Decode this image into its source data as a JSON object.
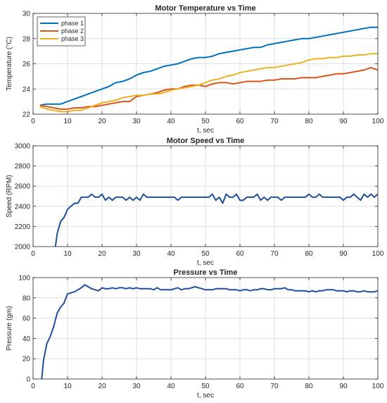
{
  "chart_data": [
    {
      "type": "line",
      "title": "Motor Temperature vs Time",
      "xlabel": "t, sec",
      "ylabel": "Temperature (°C)",
      "xlim": [
        0,
        100
      ],
      "ylim": [
        22,
        30
      ],
      "xticks": [
        "0",
        "10",
        "20",
        "30",
        "40",
        "50",
        "60",
        "70",
        "80",
        "90",
        "100"
      ],
      "yticks": [
        "22",
        "24",
        "26",
        "28",
        "30"
      ],
      "grid": true,
      "legend": "top-left",
      "series": [
        {
          "name": "phase 1",
          "color": "#0072BD",
          "x": [
            2,
            4,
            6,
            8,
            10,
            12,
            14,
            16,
            18,
            20,
            22,
            24,
            26,
            28,
            30,
            32,
            34,
            36,
            38,
            40,
            42,
            44,
            46,
            48,
            50,
            52,
            54,
            56,
            58,
            60,
            62,
            64,
            66,
            68,
            70,
            72,
            74,
            76,
            78,
            80,
            82,
            84,
            86,
            88,
            90,
            92,
            94,
            96,
            98,
            100
          ],
          "y": [
            22.7,
            22.8,
            22.8,
            22.8,
            23.0,
            23.2,
            23.4,
            23.6,
            23.8,
            24.0,
            24.2,
            24.5,
            24.6,
            24.8,
            25.1,
            25.3,
            25.4,
            25.6,
            25.8,
            25.9,
            26.0,
            26.2,
            26.4,
            26.5,
            26.5,
            26.6,
            26.8,
            26.9,
            27.0,
            27.1,
            27.2,
            27.3,
            27.3,
            27.5,
            27.6,
            27.7,
            27.8,
            27.9,
            28.0,
            28.0,
            28.1,
            28.2,
            28.3,
            28.4,
            28.5,
            28.6,
            28.7,
            28.8,
            28.9,
            28.9
          ]
        },
        {
          "name": "phase 2",
          "color": "#D95319",
          "x": [
            2,
            4,
            6,
            8,
            10,
            12,
            14,
            16,
            18,
            20,
            22,
            24,
            26,
            28,
            30,
            32,
            34,
            36,
            38,
            40,
            42,
            44,
            46,
            48,
            50,
            52,
            54,
            56,
            58,
            60,
            62,
            64,
            66,
            68,
            70,
            72,
            74,
            76,
            78,
            80,
            82,
            84,
            86,
            88,
            90,
            92,
            94,
            96,
            98,
            100
          ],
          "y": [
            22.7,
            22.6,
            22.5,
            22.4,
            22.4,
            22.5,
            22.5,
            22.6,
            22.6,
            22.7,
            22.8,
            22.9,
            23.0,
            23.0,
            23.4,
            23.5,
            23.6,
            23.7,
            23.9,
            24.0,
            24.0,
            24.2,
            24.3,
            24.3,
            24.2,
            24.4,
            24.5,
            24.5,
            24.4,
            24.5,
            24.6,
            24.6,
            24.6,
            24.7,
            24.7,
            24.8,
            24.8,
            24.8,
            24.9,
            24.9,
            24.9,
            25.0,
            25.1,
            25.2,
            25.2,
            25.3,
            25.4,
            25.5,
            25.7,
            25.5
          ]
        },
        {
          "name": "phase 3",
          "color": "#EDB120",
          "x": [
            2,
            4,
            6,
            8,
            10,
            12,
            14,
            16,
            18,
            20,
            22,
            24,
            26,
            28,
            30,
            32,
            34,
            36,
            38,
            40,
            42,
            44,
            46,
            48,
            50,
            52,
            54,
            56,
            58,
            60,
            62,
            64,
            66,
            68,
            70,
            72,
            74,
            76,
            78,
            80,
            82,
            84,
            86,
            88,
            90,
            92,
            94,
            96,
            98,
            100
          ],
          "y": [
            22.6,
            22.4,
            22.3,
            22.2,
            22.2,
            22.3,
            22.3,
            22.5,
            22.7,
            22.9,
            23.0,
            23.1,
            23.3,
            23.4,
            23.5,
            23.5,
            23.6,
            23.6,
            23.7,
            23.9,
            24.0,
            24.1,
            24.2,
            24.3,
            24.5,
            24.7,
            24.8,
            25.0,
            25.1,
            25.3,
            25.4,
            25.5,
            25.6,
            25.7,
            25.7,
            25.8,
            25.9,
            26.0,
            26.1,
            26.3,
            26.4,
            26.4,
            26.5,
            26.5,
            26.6,
            26.6,
            26.7,
            26.7,
            26.8,
            26.8
          ]
        }
      ]
    },
    {
      "type": "line",
      "title": "Motor Speed vs Time",
      "xlabel": "t, sec",
      "ylabel": "Speed (RPM)",
      "xlim": [
        0,
        100
      ],
      "ylim": [
        2000,
        3000
      ],
      "xticks": [
        "0",
        "10",
        "20",
        "30",
        "40",
        "50",
        "60",
        "70",
        "80",
        "90",
        "100"
      ],
      "yticks": [
        "2000",
        "2200",
        "2400",
        "2600",
        "2800",
        "3000"
      ],
      "grid": true,
      "series": [
        {
          "color": "#1F4E9C",
          "x": [
            6.5,
            7,
            8,
            9,
            10,
            11,
            12,
            13,
            14,
            15,
            16,
            17,
            18,
            19,
            20,
            21,
            22,
            23,
            24,
            25,
            26,
            27,
            28,
            29,
            30,
            31,
            32,
            33,
            34,
            35,
            36,
            37,
            38,
            39,
            40,
            41,
            42,
            43,
            44,
            45,
            46,
            47,
            48,
            49,
            50,
            51,
            52,
            53,
            54,
            55,
            56,
            57,
            58,
            59,
            60,
            61,
            62,
            63,
            64,
            65,
            66,
            67,
            68,
            69,
            70,
            71,
            72,
            73,
            74,
            75,
            76,
            77,
            78,
            79,
            80,
            81,
            82,
            83,
            84,
            85,
            86,
            87,
            88,
            89,
            90,
            91,
            92,
            93,
            94,
            95,
            96,
            97,
            98,
            99,
            100
          ],
          "y": [
            2000,
            2130,
            2250,
            2290,
            2370,
            2400,
            2430,
            2430,
            2490,
            2490,
            2490,
            2520,
            2490,
            2490,
            2520,
            2460,
            2490,
            2460,
            2490,
            2490,
            2490,
            2460,
            2490,
            2460,
            2490,
            2460,
            2520,
            2490,
            2490,
            2490,
            2490,
            2490,
            2490,
            2490,
            2490,
            2490,
            2460,
            2490,
            2490,
            2490,
            2490,
            2490,
            2490,
            2490,
            2490,
            2490,
            2520,
            2460,
            2490,
            2430,
            2520,
            2490,
            2490,
            2520,
            2460,
            2460,
            2490,
            2490,
            2490,
            2520,
            2460,
            2490,
            2460,
            2490,
            2490,
            2490,
            2460,
            2490,
            2490,
            2490,
            2490,
            2490,
            2490,
            2490,
            2520,
            2490,
            2490,
            2520,
            2490,
            2490,
            2490,
            2490,
            2490,
            2490,
            2460,
            2490,
            2490,
            2520,
            2490,
            2460,
            2520,
            2490,
            2520,
            2490,
            2520
          ]
        }
      ]
    },
    {
      "type": "line",
      "title": "Pressure vs Time",
      "xlabel": "t, sec",
      "ylabel": "Pressure (gm)",
      "xlim": [
        0,
        100
      ],
      "ylim": [
        0,
        100
      ],
      "xticks": [
        "0",
        "10",
        "20",
        "30",
        "40",
        "50",
        "60",
        "70",
        "80",
        "90",
        "100"
      ],
      "yticks": [
        "0",
        "20",
        "40",
        "60",
        "80",
        "100"
      ],
      "grid": true,
      "series": [
        {
          "color": "#1F4E9C",
          "x": [
            2.5,
            3,
            4,
            5,
            6,
            7,
            8,
            9,
            10,
            11,
            12,
            13,
            14,
            15,
            16,
            17,
            18,
            19,
            20,
            21,
            22,
            23,
            24,
            25,
            26,
            27,
            28,
            29,
            30,
            31,
            32,
            33,
            34,
            35,
            36,
            37,
            38,
            39,
            40,
            41,
            42,
            43,
            44,
            45,
            46,
            47,
            48,
            49,
            50,
            51,
            52,
            53,
            54,
            55,
            56,
            57,
            58,
            59,
            60,
            61,
            62,
            63,
            64,
            65,
            66,
            67,
            68,
            69,
            70,
            71,
            72,
            73,
            74,
            75,
            76,
            77,
            78,
            79,
            80,
            81,
            82,
            83,
            84,
            85,
            86,
            87,
            88,
            89,
            90,
            91,
            92,
            93,
            94,
            95,
            96,
            97,
            98,
            99,
            100
          ],
          "y": [
            0,
            18,
            35,
            42,
            52,
            65,
            71,
            75,
            84,
            85,
            86,
            88,
            90,
            93,
            91,
            89,
            88,
            87,
            90,
            89,
            89,
            90,
            89,
            90,
            90,
            89,
            90,
            89,
            90,
            89,
            89,
            89,
            89,
            88,
            90,
            88,
            88,
            88,
            88,
            89,
            90,
            88,
            89,
            89,
            90,
            91,
            90,
            89,
            88,
            88,
            88,
            89,
            89,
            89,
            89,
            88,
            88,
            88,
            87,
            88,
            88,
            87,
            88,
            88,
            89,
            89,
            88,
            88,
            89,
            89,
            89,
            90,
            88,
            88,
            87,
            87,
            87,
            87,
            86,
            87,
            86,
            87,
            87,
            88,
            88,
            88,
            87,
            87,
            87,
            86,
            87,
            87,
            86,
            86,
            87,
            86,
            86,
            86,
            87
          ]
        }
      ]
    }
  ]
}
